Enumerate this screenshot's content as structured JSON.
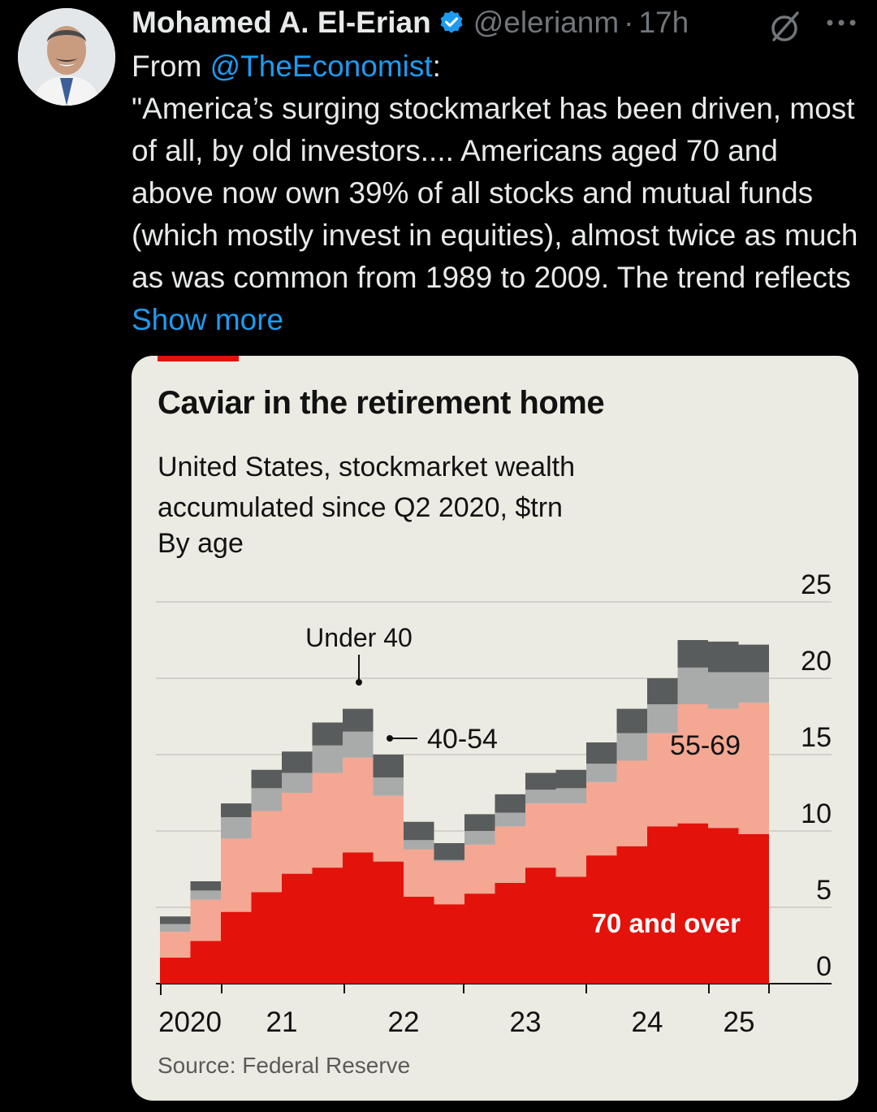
{
  "tweet": {
    "author_name": "Mohamed A. El-Erian",
    "handle": "@elerianm",
    "separator": "·",
    "time": "17h",
    "text_prefix": "From ",
    "mention": "@TheEconomist",
    "text_colon": ":",
    "body": "\"America’s surging stockmarket has been driven, most of all, by old investors.... Americans aged 70 and above now own 39% of all stocks and mutual funds (which mostly invest in equities), almost twice as much as was common from 1989 to 2009. The trend reflects ",
    "show_more": "Show more"
  },
  "icons": {
    "verified": "verified-badge-icon",
    "grok": "grok-icon",
    "more": "more-options-icon"
  },
  "colors": {
    "background": "#000000",
    "link": "#1d9bf0",
    "text": "#e7e9ea",
    "muted": "#71767b",
    "card_bg": "#ecebe3",
    "series_70_over": "#e3120b",
    "series_55_69": "#f4a793",
    "series_40_54": "#a9abab",
    "series_under_40": "#595c5c"
  },
  "chart_data": {
    "type": "area",
    "title": "Caviar in the retirement home",
    "subtitle": "United States, stockmarket wealth accumulated since Q2 2020, $trn",
    "subtitle2": "By age",
    "source": "Source: Federal Reserve",
    "stacked": true,
    "step": true,
    "x": [
      "2020Q2",
      "2020Q3",
      "2020Q4",
      "2021Q1",
      "2021Q2",
      "2021Q3",
      "2021Q4",
      "2022Q1",
      "2022Q2",
      "2022Q3",
      "2022Q4",
      "2023Q1",
      "2023Q2",
      "2023Q3",
      "2023Q4",
      "2024Q1",
      "2024Q2",
      "2024Q3",
      "2024Q4",
      "2025Q1"
    ],
    "x_tick_labels": [
      "2020",
      "21",
      "22",
      "23",
      "24",
      "25"
    ],
    "y_tick_labels": [
      "0",
      "5",
      "10",
      "15",
      "20",
      "25"
    ],
    "ylim": [
      0,
      25
    ],
    "yaxis_position": "right",
    "grid": true,
    "series": [
      {
        "name": "70 and over",
        "label": "70 and over",
        "values": [
          1.7,
          2.8,
          4.7,
          6.0,
          7.2,
          7.6,
          8.6,
          8.0,
          5.7,
          5.2,
          5.9,
          6.6,
          7.6,
          7.0,
          8.4,
          9.0,
          10.3,
          10.5,
          10.2,
          9.8
        ]
      },
      {
        "name": "55-69",
        "label": "55-69",
        "values": [
          1.7,
          2.7,
          4.8,
          5.3,
          5.3,
          6.2,
          6.2,
          4.3,
          3.1,
          2.8,
          3.2,
          3.7,
          4.2,
          4.8,
          4.8,
          5.6,
          6.1,
          7.8,
          7.8,
          8.6
        ]
      },
      {
        "name": "40-54",
        "label": "40-54",
        "values": [
          0.5,
          0.6,
          1.4,
          1.5,
          1.3,
          1.8,
          1.7,
          1.2,
          0.6,
          0.1,
          0.9,
          0.9,
          0.9,
          1.0,
          1.2,
          1.8,
          1.9,
          2.4,
          2.4,
          2.0
        ]
      },
      {
        "name": "Under 40",
        "label": "Under 40",
        "values": [
          0.5,
          0.6,
          0.9,
          1.2,
          1.4,
          1.5,
          1.5,
          1.5,
          1.2,
          1.1,
          1.1,
          1.2,
          1.1,
          1.2,
          1.4,
          1.6,
          1.7,
          1.8,
          2.0,
          1.8
        ]
      }
    ],
    "annotations": [
      {
        "text": "Under 40",
        "series": "Under 40"
      },
      {
        "text": "40-54",
        "series": "40-54"
      },
      {
        "text": "55-69",
        "series": "55-69"
      },
      {
        "text": "70 and over",
        "series": "70 and over"
      }
    ]
  }
}
